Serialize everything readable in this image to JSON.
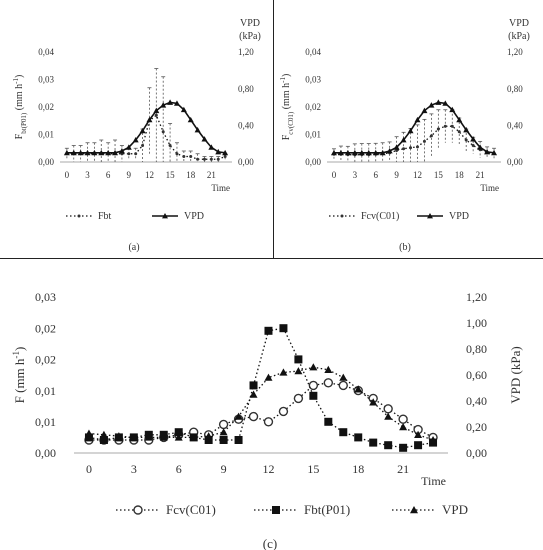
{
  "chart_data": [
    {
      "panel": "a",
      "type": "line",
      "caption": "(a)",
      "xlabel": "Time",
      "ylabel_left": "F",
      "ylabel_left_sub": "bt(P01)",
      "ylabel_left_unit": "(mm h",
      "ylabel_left_sup": "-1",
      "ylabel_left_tail": ")",
      "ylabel_right_line1": "VPD",
      "ylabel_right_line2": "(kPa)",
      "xticks": [
        "0",
        "3",
        "6",
        "9",
        "12",
        "15",
        "18",
        "21"
      ],
      "yticks_left": [
        "0,00",
        "0,01",
        "0,02",
        "0,03",
        "0,04"
      ],
      "yticks_right": [
        "0,00",
        "0,40",
        "0,80",
        "1,20"
      ],
      "xlim": [
        -1,
        24
      ],
      "ylim_left": [
        0,
        0.04
      ],
      "ylim_right": [
        0,
        1.2
      ],
      "legend": [
        "Fbt",
        "VPD"
      ],
      "series": [
        {
          "name": "Fbt",
          "axis": "left",
          "style": "dotted-small",
          "x": [
            0,
            1,
            2,
            3,
            4,
            5,
            6,
            7,
            8,
            9,
            10,
            11,
            12,
            13,
            14,
            15,
            16,
            17,
            18,
            19,
            20,
            21,
            22,
            23
          ],
          "values": [
            0.003,
            0.003,
            0.003,
            0.003,
            0.003,
            0.003,
            0.003,
            0.003,
            0.003,
            0.003,
            0.003,
            0.006,
            0.015,
            0.017,
            0.011,
            0.006,
            0.003,
            0.002,
            0.002,
            0.001,
            0.001,
            0.001,
            0.001,
            0.002
          ],
          "err": [
            0.002,
            0.003,
            0.003,
            0.004,
            0.004,
            0.005,
            0.004,
            0.005,
            0.003,
            0.002,
            0.002,
            0.006,
            0.012,
            0.017,
            0.02,
            0.008,
            0.004,
            0.002,
            0.002,
            0.002,
            0.001,
            0.001,
            0.001,
            0.001
          ]
        },
        {
          "name": "VPD",
          "axis": "right",
          "style": "solid-triangle",
          "x": [
            0,
            1,
            2,
            3,
            4,
            5,
            6,
            7,
            8,
            9,
            10,
            11,
            12,
            13,
            14,
            15,
            16,
            17,
            18,
            19,
            20,
            21,
            22,
            23
          ],
          "values": [
            0.1,
            0.1,
            0.1,
            0.1,
            0.1,
            0.1,
            0.1,
            0.1,
            0.12,
            0.16,
            0.24,
            0.34,
            0.46,
            0.56,
            0.62,
            0.65,
            0.64,
            0.57,
            0.46,
            0.35,
            0.25,
            0.16,
            0.11,
            0.1
          ]
        }
      ]
    },
    {
      "panel": "b",
      "type": "line",
      "caption": "(b)",
      "xlabel": "Time",
      "ylabel_left": "F",
      "ylabel_left_sub": "cv(C01)",
      "ylabel_left_unit": "(mm h",
      "ylabel_left_sup": "-1",
      "ylabel_left_tail": ")",
      "ylabel_right_line1": "VPD",
      "ylabel_right_line2": "(kPa)",
      "xticks": [
        "0",
        "3",
        "6",
        "9",
        "12",
        "15",
        "18",
        "21"
      ],
      "yticks_left": [
        "0,00",
        "0,01",
        "0,02",
        "0,03",
        "0,04"
      ],
      "yticks_right": [
        "0,00",
        "0,40",
        "0,80",
        "1,20"
      ],
      "xlim": [
        -1,
        24
      ],
      "ylim_left": [
        0,
        0.04
      ],
      "ylim_right": [
        0,
        1.2
      ],
      "legend": [
        "Fcv(C01)",
        "VPD"
      ],
      "series": [
        {
          "name": "Fcv(C01)",
          "axis": "left",
          "style": "dotted-small",
          "x": [
            0,
            1,
            2,
            3,
            4,
            5,
            6,
            7,
            8,
            9,
            10,
            11,
            12,
            13,
            14,
            15,
            16,
            17,
            18,
            19,
            20,
            21,
            22,
            23
          ],
          "values": [
            0.0028,
            0.0028,
            0.0027,
            0.0026,
            0.0027,
            0.0027,
            0.0028,
            0.003,
            0.0033,
            0.0042,
            0.0048,
            0.0052,
            0.0055,
            0.0075,
            0.0095,
            0.012,
            0.013,
            0.013,
            0.011,
            0.008,
            0.006,
            0.0045,
            0.0035,
            0.003
          ],
          "err": [
            0.002,
            0.003,
            0.003,
            0.004,
            0.004,
            0.004,
            0.004,
            0.004,
            0.004,
            0.005,
            0.006,
            0.007,
            0.008,
            0.008,
            0.008,
            0.007,
            0.006,
            0.006,
            0.005,
            0.004,
            0.003,
            0.003,
            0.002,
            0.002
          ]
        },
        {
          "name": "VPD",
          "axis": "right",
          "style": "solid-triangle",
          "x": [
            0,
            1,
            2,
            3,
            4,
            5,
            6,
            7,
            8,
            9,
            10,
            11,
            12,
            13,
            14,
            15,
            16,
            17,
            18,
            19,
            20,
            21,
            22,
            23
          ],
          "values": [
            0.1,
            0.1,
            0.1,
            0.1,
            0.1,
            0.1,
            0.1,
            0.1,
            0.12,
            0.16,
            0.24,
            0.34,
            0.46,
            0.56,
            0.62,
            0.65,
            0.64,
            0.57,
            0.46,
            0.35,
            0.25,
            0.16,
            0.11,
            0.1
          ]
        }
      ]
    },
    {
      "panel": "c",
      "type": "line",
      "caption": "(c)",
      "xlabel": "Time",
      "ylabel_left": "F (mm h",
      "ylabel_left_sup": "-1",
      "ylabel_left_tail": ")",
      "ylabel_right": "VPD (kPa)",
      "xticks": [
        "0",
        "3",
        "6",
        "9",
        "12",
        "15",
        "18",
        "21"
      ],
      "yticks_left": [
        "0,00",
        "0,01",
        "0,01",
        "0,02",
        "0,02",
        "0,03"
      ],
      "yticks_right": [
        "0,00",
        "0,20",
        "0,40",
        "0,60",
        "0,80",
        "1,00",
        "1,20"
      ],
      "xlim": [
        -1,
        24
      ],
      "ylim_left": [
        0,
        0.03
      ],
      "ylim_right": [
        0,
        1.2
      ],
      "legend": [
        "Fcv(C01)",
        "Fbt(P01)",
        "VPD"
      ],
      "series": [
        {
          "name": "Fcv(C01)",
          "axis": "left",
          "style": "dotted-circle",
          "x": [
            0,
            1,
            2,
            3,
            4,
            5,
            6,
            7,
            8,
            9,
            10,
            11,
            12,
            13,
            14,
            15,
            16,
            17,
            18,
            19,
            20,
            21,
            22,
            23
          ],
          "values": [
            0.0025,
            0.0025,
            0.0025,
            0.0025,
            0.0025,
            0.003,
            0.0035,
            0.004,
            0.0035,
            0.0055,
            0.0065,
            0.007,
            0.006,
            0.008,
            0.0105,
            0.013,
            0.0135,
            0.013,
            0.012,
            0.0105,
            0.0085,
            0.0065,
            0.0045,
            0.003
          ]
        },
        {
          "name": "Fbt(P01)",
          "axis": "left",
          "style": "dotted-square",
          "x": [
            0,
            1,
            2,
            3,
            4,
            5,
            6,
            7,
            8,
            9,
            10,
            11,
            12,
            13,
            14,
            15,
            16,
            17,
            18,
            19,
            20,
            21,
            22,
            23
          ],
          "values": [
            0.003,
            0.0025,
            0.003,
            0.003,
            0.0035,
            0.0035,
            0.004,
            0.003,
            0.0025,
            0.0025,
            0.0025,
            0.013,
            0.0235,
            0.024,
            0.018,
            0.011,
            0.006,
            0.004,
            0.003,
            0.002,
            0.0015,
            0.001,
            0.0015,
            0.002
          ]
        },
        {
          "name": "VPD",
          "axis": "right",
          "style": "dotted-triangle",
          "x": [
            0,
            1,
            2,
            3,
            4,
            5,
            6,
            7,
            8,
            9,
            10,
            11,
            12,
            13,
            14,
            15,
            16,
            17,
            18,
            19,
            20,
            21,
            22,
            23
          ],
          "values": [
            0.15,
            0.14,
            0.13,
            0.12,
            0.12,
            0.12,
            0.12,
            0.12,
            0.13,
            0.16,
            0.28,
            0.45,
            0.58,
            0.62,
            0.63,
            0.66,
            0.64,
            0.58,
            0.49,
            0.39,
            0.28,
            0.2,
            0.14,
            0.1
          ]
        }
      ]
    }
  ]
}
